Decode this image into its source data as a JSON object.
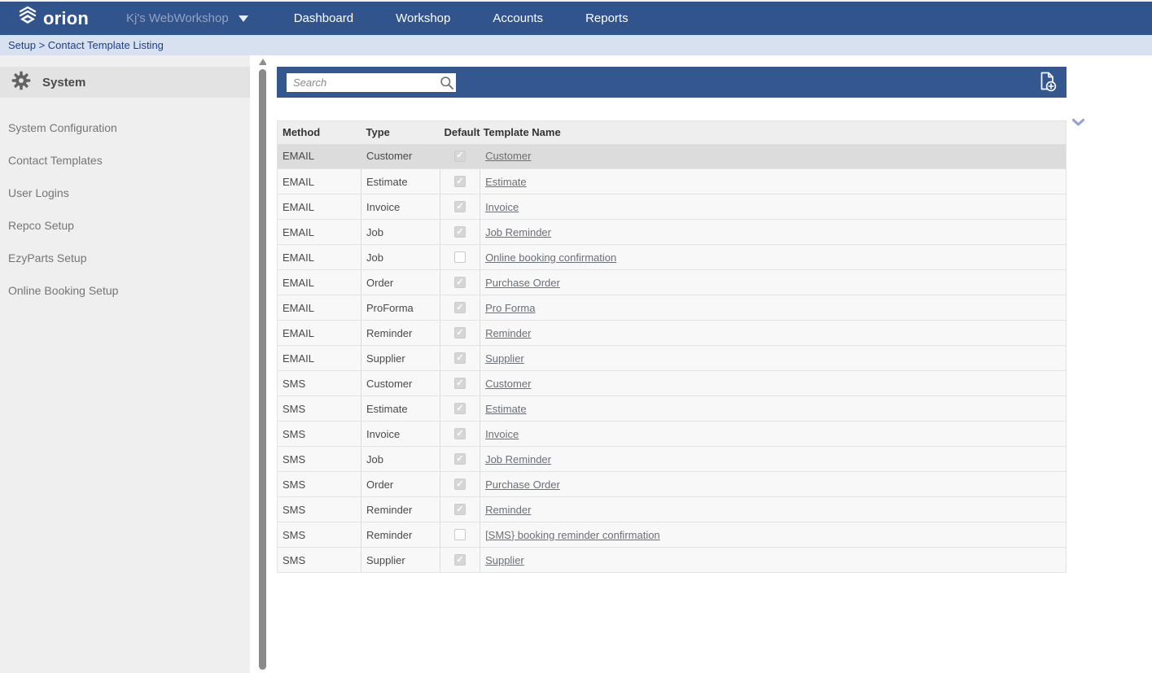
{
  "navbar": {
    "logo_text": "orion",
    "company": "Kj's WebWorkshop",
    "items": [
      {
        "label": "Dashboard"
      },
      {
        "label": "Workshop"
      },
      {
        "label": "Accounts"
      },
      {
        "label": "Reports"
      }
    ]
  },
  "breadcrumb": {
    "text": "Setup > Contact Template Listing"
  },
  "sidebar": {
    "header": "System",
    "items": [
      "System Configuration",
      "Contact Templates",
      "User Logins",
      "Repco Setup",
      "EzyParts Setup",
      "Online Booking Setup"
    ]
  },
  "toolbar": {
    "search_placeholder": "Search"
  },
  "icons": {
    "logo": "stacked-chevron-diamond",
    "company_dropdown": "caret-down",
    "sidebar_header": "gear",
    "search": "magnifying-glass",
    "add_template": "document-plus",
    "collapse": "chevron-down",
    "scroll_up": "triangle-up",
    "check_glyph": "✓"
  },
  "colors": {
    "navbar_blue": "#32548c",
    "toolbar_blue": "#345790",
    "breadcrumb_bg": "#d8e1f0",
    "breadcrumb_text": "#1b3f8d",
    "selected_row": "#dcdcdc",
    "link": "#6b6f76"
  },
  "table": {
    "columns": [
      "Method",
      "Type",
      "Default",
      "Template Name"
    ],
    "rows": [
      {
        "method": "EMAIL",
        "type": "Customer",
        "default": true,
        "template": "Customer",
        "selected": true
      },
      {
        "method": "EMAIL",
        "type": "Estimate",
        "default": true,
        "template": "Estimate"
      },
      {
        "method": "EMAIL",
        "type": "Invoice",
        "default": true,
        "template": "Invoice"
      },
      {
        "method": "EMAIL",
        "type": "Job",
        "default": true,
        "template": "Job Reminder"
      },
      {
        "method": "EMAIL",
        "type": "Job",
        "default": false,
        "template": "Online booking confirmation"
      },
      {
        "method": "EMAIL",
        "type": "Order",
        "default": true,
        "template": "Purchase Order"
      },
      {
        "method": "EMAIL",
        "type": "ProForma",
        "default": true,
        "template": "Pro Forma"
      },
      {
        "method": "EMAIL",
        "type": "Reminder",
        "default": true,
        "template": "Reminder"
      },
      {
        "method": "EMAIL",
        "type": "Supplier",
        "default": true,
        "template": "Supplier"
      },
      {
        "method": "SMS",
        "type": "Customer",
        "default": true,
        "template": "Customer"
      },
      {
        "method": "SMS",
        "type": "Estimate",
        "default": true,
        "template": "Estimate"
      },
      {
        "method": "SMS",
        "type": "Invoice",
        "default": true,
        "template": "Invoice"
      },
      {
        "method": "SMS",
        "type": "Job",
        "default": true,
        "template": "Job Reminder"
      },
      {
        "method": "SMS",
        "type": "Order",
        "default": true,
        "template": "Purchase Order"
      },
      {
        "method": "SMS",
        "type": "Reminder",
        "default": true,
        "template": "Reminder"
      },
      {
        "method": "SMS",
        "type": "Reminder",
        "default": false,
        "template": "[SMS} booking reminder confirmation"
      },
      {
        "method": "SMS",
        "type": "Supplier",
        "default": true,
        "template": "Supplier"
      }
    ]
  }
}
